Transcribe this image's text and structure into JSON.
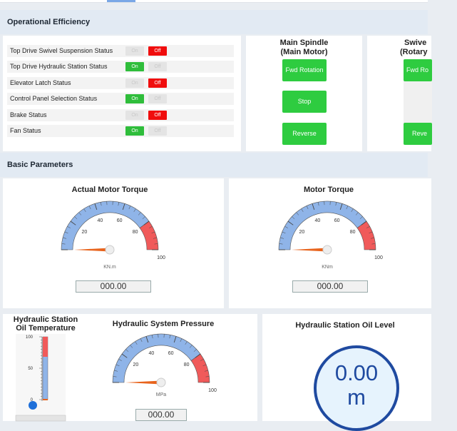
{
  "operational_efficiency": {
    "title": "Operational Efficiency",
    "statuses": [
      {
        "label": "Top Drive Swivel Suspension Status",
        "on": "On",
        "off": "Off",
        "state": "off"
      },
      {
        "label": "Top Drive Hydraulic Station Status",
        "on": "On",
        "off": "Off",
        "state": "on"
      },
      {
        "label": "Elevator Latch Status",
        "on": "On",
        "off": "Off",
        "state": "off"
      },
      {
        "label": "Control Panel Selection Status",
        "on": "On",
        "off": "Off",
        "state": "on"
      },
      {
        "label": "Brake Status",
        "on": "On",
        "off": "Off",
        "state": "off"
      },
      {
        "label": "Fan Status",
        "on": "On",
        "off": "Off",
        "state": "on"
      }
    ],
    "main_spindle": {
      "title_line1": "Main Spindle",
      "title_line2": "(Main Motor)",
      "fwd": "Fwd Rotation",
      "stop": "Stop",
      "reverse": "Reverse"
    },
    "swivel": {
      "title_line1": "Swive",
      "title_line2": "(Rotary",
      "fwd": "Fwd Ro",
      "reverse": "Reve"
    }
  },
  "basic_parameters": {
    "title": "Basic Parameters",
    "actual_motor_torque": {
      "title": "Actual Motor Torque",
      "unit": "KN.m",
      "value": "000.00",
      "ticks": [
        "20",
        "40",
        "60",
        "80",
        "100"
      ],
      "reading": 0
    },
    "motor_torque": {
      "title": "Motor Torque",
      "unit": "KNm",
      "value": "000.00",
      "ticks": [
        "20",
        "40",
        "60",
        "80",
        "100"
      ],
      "reading": 0
    },
    "oil_temperature": {
      "title_line1": "Hydraulic Station",
      "title_line2": "Oil Temperature",
      "ticks": [
        "100",
        "50",
        "0"
      ],
      "reading": 0
    },
    "system_pressure": {
      "title": "Hydraulic System Pressure",
      "unit": "MPa",
      "value": "000.00",
      "ticks": [
        "20",
        "40",
        "60",
        "80",
        "100"
      ],
      "reading": 0
    },
    "oil_level": {
      "title": "Hydraulic Station Oil Level",
      "value": "0.00",
      "unit": "m"
    }
  },
  "colors": {
    "green": "#2ecc40",
    "red": "#f00d0d",
    "gauge_blue": "#8fb4e8",
    "gauge_red": "#f05a5a",
    "needle": "#e8641d",
    "tank_border": "#1f4aa0"
  }
}
